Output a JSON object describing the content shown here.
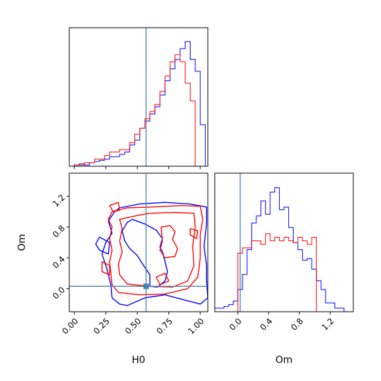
{
  "chart_data": {
    "type": "corner",
    "parameters": [
      "H0",
      "Om"
    ],
    "truth": {
      "H0": 0.57,
      "Om": 0.03
    },
    "colors": {
      "blue": "#0000ff",
      "red": "#ff0000",
      "truth": "#4682b4"
    },
    "panels": [
      {
        "id": "h0-marginal",
        "type": "histogram",
        "xlim": [
          -0.04,
          1.06
        ],
        "x_ticks": [
          "0.00",
          "0.25",
          "0.50",
          "0.75",
          "1.00"
        ],
        "bins": [
          -0.04,
          0.0,
          0.04,
          0.08,
          0.12,
          0.16,
          0.2,
          0.24,
          0.28,
          0.32,
          0.36,
          0.4,
          0.44,
          0.48,
          0.52,
          0.56,
          0.6,
          0.64,
          0.68,
          0.72,
          0.76,
          0.8,
          0.84,
          0.88,
          0.92,
          0.96,
          1.0,
          1.04
        ],
        "series": [
          {
            "color": "blue",
            "counts": [
              0,
              1,
              2,
              1,
              3,
              4,
              5,
              6,
              8,
              8,
              10,
              12,
              18,
              22,
              32,
              38,
              44,
              50,
              60,
              72,
              82,
              90,
              99,
              105,
              90,
              80,
              35
            ]
          },
          {
            "color": "red",
            "counts": [
              0,
              1,
              1,
              3,
              3,
              6,
              6,
              9,
              12,
              12,
              14,
              14,
              20,
              27,
              32,
              40,
              46,
              52,
              63,
              76,
              88,
              94,
              88,
              70,
              55,
              0,
              0
            ]
          }
        ]
      },
      {
        "id": "h0-om-contour",
        "type": "contour",
        "xlim": [
          -0.04,
          1.06
        ],
        "ylim": [
          -0.3,
          1.5
        ],
        "y_ticks": [
          "0.0",
          "0.4",
          "0.8",
          "1.2"
        ],
        "xlabel": "H0",
        "ylabel": "Om",
        "series": [
          {
            "color": "blue",
            "levels": [
              [
                [
                  0.36,
                  1.05
                ],
                [
                  0.52,
                  1.1
                ],
                [
                  0.72,
                  1.12
                ],
                [
                  0.92,
                  1.1
                ],
                [
                  1.05,
                  1.06
                ],
                [
                  1.05,
                  0.85
                ],
                [
                  1.03,
                  0.55
                ],
                [
                  1.05,
                  0.3
                ],
                [
                  1.05,
                  0.1
                ],
                [
                  1.06,
                  -0.12
                ],
                [
                  1.0,
                  -0.2
                ],
                [
                  0.88,
                  -0.15
                ],
                [
                  0.72,
                  -0.08
                ],
                [
                  0.56,
                  -0.12
                ],
                [
                  0.42,
                  -0.22
                ],
                [
                  0.36,
                  -0.2
                ],
                [
                  0.3,
                  -0.12
                ],
                [
                  0.29,
                  0.05
                ],
                [
                  0.26,
                  0.25
                ],
                [
                  0.22,
                  0.45
                ],
                [
                  0.25,
                  0.6
                ],
                [
                  0.3,
                  0.72
                ],
                [
                  0.27,
                  0.88
                ],
                [
                  0.32,
                  1.0
                ],
                [
                  0.36,
                  1.05
                ]
              ],
              [
                [
                  0.46,
                  0.9
                ],
                [
                  0.56,
                  0.84
                ],
                [
                  0.65,
                  0.76
                ],
                [
                  0.7,
                  0.65
                ],
                [
                  0.68,
                  0.54
                ],
                [
                  0.7,
                  0.48
                ],
                [
                  0.72,
                  0.35
                ],
                [
                  0.74,
                  0.22
                ],
                [
                  0.72,
                  0.1
                ],
                [
                  0.66,
                  0.02
                ],
                [
                  0.6,
                  0.03
                ],
                [
                  0.6,
                  0.18
                ],
                [
                  0.55,
                  0.3
                ],
                [
                  0.5,
                  0.43
                ],
                [
                  0.44,
                  0.52
                ],
                [
                  0.4,
                  0.62
                ],
                [
                  0.38,
                  0.75
                ],
                [
                  0.42,
                  0.86
                ],
                [
                  0.46,
                  0.9
                ]
              ],
              [
                [
                  0.2,
                  0.67
                ],
                [
                  0.28,
                  0.6
                ],
                [
                  0.27,
                  0.45
                ],
                [
                  0.2,
                  0.5
                ],
                [
                  0.17,
                  0.58
                ],
                [
                  0.2,
                  0.67
                ]
              ]
            ]
          },
          {
            "color": "red",
            "levels": [
              [
                [
                  0.3,
                  1.0
                ],
                [
                  0.42,
                  1.05
                ],
                [
                  0.6,
                  1.06
                ],
                [
                  0.85,
                  1.08
                ],
                [
                  1.0,
                  1.07
                ],
                [
                  1.02,
                  0.9
                ],
                [
                  1.0,
                  0.7
                ],
                [
                  1.0,
                  0.4
                ],
                [
                  0.98,
                  0.15
                ],
                [
                  0.9,
                  0.0
                ],
                [
                  0.72,
                  -0.07
                ],
                [
                  0.52,
                  -0.08
                ],
                [
                  0.35,
                  -0.05
                ],
                [
                  0.3,
                  0.05
                ],
                [
                  0.29,
                  0.2
                ],
                [
                  0.28,
                  0.35
                ],
                [
                  0.3,
                  0.5
                ],
                [
                  0.28,
                  0.65
                ],
                [
                  0.3,
                  0.8
                ],
                [
                  0.27,
                  0.9
                ],
                [
                  0.3,
                  1.0
                ]
              ],
              [
                [
                  0.5,
                  0.95
                ],
                [
                  0.6,
                  0.98
                ],
                [
                  0.8,
                  0.99
                ],
                [
                  0.95,
                  0.98
                ],
                [
                  0.96,
                  0.8
                ],
                [
                  0.94,
                  0.55
                ],
                [
                  0.95,
                  0.3
                ],
                [
                  0.9,
                  0.1
                ],
                [
                  0.78,
                  0.02
                ],
                [
                  0.6,
                  0.03
                ],
                [
                  0.42,
                  0.06
                ],
                [
                  0.36,
                  0.18
                ],
                [
                  0.35,
                  0.32
                ],
                [
                  0.38,
                  0.48
                ],
                [
                  0.36,
                  0.62
                ],
                [
                  0.38,
                  0.78
                ],
                [
                  0.36,
                  0.9
                ],
                [
                  0.5,
                  0.95
                ]
              ],
              [
                [
                  0.69,
                  0.8
                ],
                [
                  0.76,
                  0.82
                ],
                [
                  0.8,
                  0.74
                ],
                [
                  0.78,
                  0.64
                ],
                [
                  0.82,
                  0.52
                ],
                [
                  0.8,
                  0.42
                ],
                [
                  0.72,
                  0.4
                ],
                [
                  0.68,
                  0.5
                ],
                [
                  0.7,
                  0.62
                ],
                [
                  0.69,
                  0.8
                ]
              ],
              [
                [
                  0.28,
                  1.08
                ],
                [
                  0.35,
                  1.12
                ],
                [
                  0.36,
                  1.02
                ],
                [
                  0.31,
                  1.0
                ],
                [
                  0.28,
                  1.08
                ]
              ],
              [
                [
                  0.22,
                  0.35
                ],
                [
                  0.28,
                  0.3
                ],
                [
                  0.28,
                  0.18
                ],
                [
                  0.22,
                  0.22
                ],
                [
                  0.22,
                  0.35
                ]
              ],
              [
                [
                  0.65,
                  0.15
                ],
                [
                  0.72,
                  0.2
                ],
                [
                  0.75,
                  0.1
                ],
                [
                  0.68,
                  0.05
                ],
                [
                  0.65,
                  0.15
                ]
              ],
              [
                [
                  0.92,
                  0.78
                ],
                [
                  0.98,
                  0.75
                ],
                [
                  0.97,
                  0.65
                ],
                [
                  0.92,
                  0.7
                ],
                [
                  0.92,
                  0.78
                ]
              ]
            ]
          }
        ]
      },
      {
        "id": "om-marginal",
        "type": "histogram",
        "xlim": [
          -0.3,
          1.5
        ],
        "x_ticks": [
          "0.0",
          "0.4",
          "0.8",
          "1.2"
        ],
        "bins": [
          -0.3,
          -0.24,
          -0.18,
          -0.12,
          -0.06,
          0.0,
          0.06,
          0.12,
          0.18,
          0.24,
          0.3,
          0.36,
          0.42,
          0.48,
          0.54,
          0.6,
          0.66,
          0.72,
          0.78,
          0.84,
          0.9,
          0.96,
          1.02,
          1.08,
          1.14,
          1.2,
          1.26,
          1.32,
          1.38,
          1.44,
          1.5
        ],
        "series": [
          {
            "color": "blue",
            "counts": [
              4,
              4,
              6,
              8,
              12,
              25,
              42,
              70,
              100,
              108,
              125,
              110,
              135,
              140,
              115,
              118,
              95,
              78,
              70,
              58,
              60,
              48,
              35,
              25,
              10,
              10,
              4,
              4,
              0,
              0
            ]
          },
          {
            "color": "red",
            "counts": [
              0,
              0,
              0,
              0,
              0,
              66,
              72,
              72,
              80,
              80,
              76,
              88,
              80,
              84,
              80,
              84,
              80,
              78,
              84,
              80,
              76,
              84,
              0,
              0,
              0,
              0,
              0,
              0,
              0,
              0
            ]
          }
        ]
      }
    ]
  }
}
